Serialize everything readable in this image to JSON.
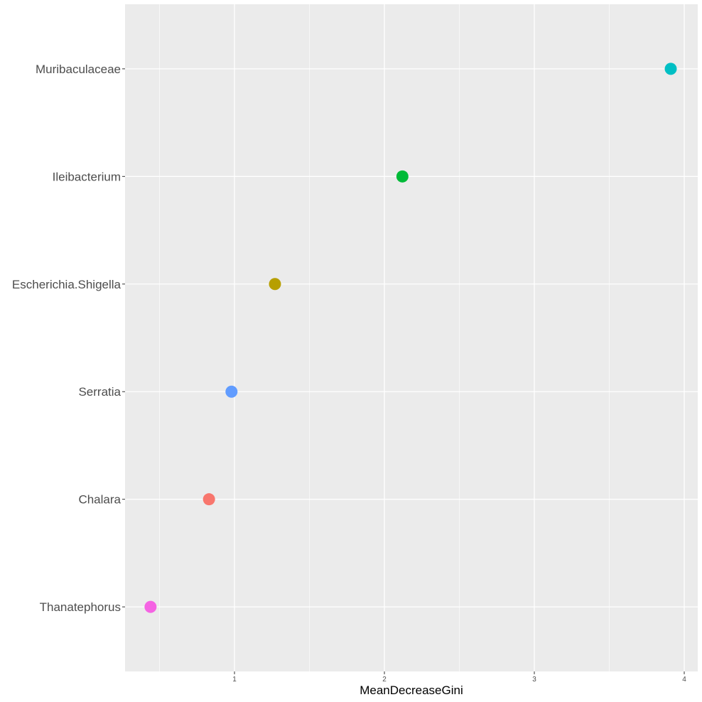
{
  "chart_data": {
    "type": "scatter",
    "xlabel": "MeanDecreaseGini",
    "ylabel": "",
    "title": "",
    "xlim": [
      0.27,
      4.09
    ],
    "x_ticks": [
      1,
      2,
      3,
      4
    ],
    "x_tick_labels": [
      "1",
      "2",
      "3",
      "4"
    ],
    "grid": true,
    "legend": "none",
    "categories": [
      "Thanatephorus",
      "Chalara",
      "Serratia",
      "Escherichia.Shigella",
      "Ileibacterium",
      "Muribaculaceae"
    ],
    "values": [
      0.44,
      0.83,
      0.98,
      1.27,
      2.12,
      3.91
    ],
    "colors": [
      "#F564E3",
      "#F8766D",
      "#619CFF",
      "#B79F00",
      "#00BA38",
      "#00BFC4"
    ]
  }
}
